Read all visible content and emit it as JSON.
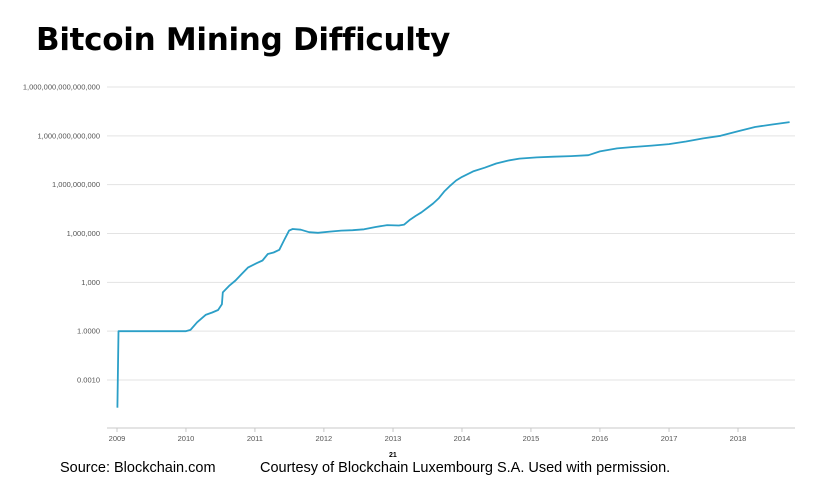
{
  "slide": {
    "title": "Bitcoin Mining Difficulty",
    "source": "Source: Blockchain.com",
    "courtesy": "Courtesy of Blockchain Luxembourg S.A.  Used with permission.",
    "page_number": "21"
  },
  "chart_data": {
    "type": "line",
    "title": "",
    "xlabel": "",
    "ylabel": "",
    "y_scale": "log",
    "grid": true,
    "line_color": "#2b9fc7",
    "grid_color": "#e3e3e3",
    "y_ticks": [
      {
        "value": 0.001,
        "label": "0.0010"
      },
      {
        "value": 1,
        "label": "1.0000"
      },
      {
        "value": 1000,
        "label": "1,000"
      },
      {
        "value": 1000000,
        "label": "1,000,000"
      },
      {
        "value": 1000000000,
        "label": "1,000,000,000"
      },
      {
        "value": 1000000000000,
        "label": "1,000,000,000,000"
      },
      {
        "value": 1000000000000000,
        "label": "1,000,000,000,000,000"
      }
    ],
    "x_ticks": [
      "2009",
      "2010",
      "2011",
      "2012",
      "2013",
      "2014",
      "2015",
      "2016",
      "2017",
      "2018"
    ],
    "x": [
      "2009-01-03",
      "2009-01-09",
      "2009-12-30",
      "2010-01-25",
      "2010-03-01",
      "2010-04-15",
      "2010-05-20",
      "2010-06-20",
      "2010-07-10",
      "2010-07-15",
      "2010-08-20",
      "2010-09-20",
      "2010-10-20",
      "2010-11-25",
      "2011-01-10",
      "2011-02-10",
      "2011-03-10",
      "2011-04-10",
      "2011-05-10",
      "2011-06-05",
      "2011-07-01",
      "2011-07-20",
      "2011-09-01",
      "2011-10-15",
      "2011-12-01",
      "2012-02-01",
      "2012-04-01",
      "2012-06-01",
      "2012-08-01",
      "2012-10-01",
      "2012-12-01",
      "2013-02-01",
      "2013-03-01",
      "2013-04-01",
      "2013-05-01",
      "2013-06-01",
      "2013-07-01",
      "2013-08-01",
      "2013-09-01",
      "2013-10-01",
      "2013-11-01",
      "2013-12-01",
      "2014-01-01",
      "2014-03-01",
      "2014-05-01",
      "2014-07-01",
      "2014-09-01",
      "2014-11-01",
      "2015-02-01",
      "2015-05-01",
      "2015-08-01",
      "2015-11-01",
      "2016-01-01",
      "2016-04-01",
      "2016-07-01",
      "2016-10-01",
      "2017-01-01",
      "2017-04-01",
      "2017-07-01",
      "2017-10-01",
      "2018-01-01",
      "2018-04-01",
      "2018-07-01",
      "2018-10-01"
    ],
    "values": [
      2e-05,
      1,
      1,
      1.2,
      3.5,
      10,
      14,
      20,
      45,
      240,
      650,
      1300,
      3000,
      8000,
      15000,
      22000,
      55000,
      68000,
      100000,
      400000,
      1500000,
      1900000,
      1700000,
      1200000,
      1100000,
      1300000,
      1500000,
      1600000,
      1800000,
      2500000,
      3300000,
      3100000,
      3500000,
      7000000,
      12000000,
      20000000,
      37000000,
      70000000,
      150000000,
      400000000,
      900000000,
      1800000000,
      3000000000,
      6500000000,
      11000000000,
      20000000000,
      30000000000,
      40000000000,
      47000000000,
      52000000000,
      57000000000,
      65000000000,
      110000000000,
      170000000000,
      210000000000,
      250000000000,
      310000000000,
      450000000000,
      700000000000,
      1000000000000,
      1900000000000,
      3500000000000,
      5000000000000,
      7000000000000
    ]
  }
}
